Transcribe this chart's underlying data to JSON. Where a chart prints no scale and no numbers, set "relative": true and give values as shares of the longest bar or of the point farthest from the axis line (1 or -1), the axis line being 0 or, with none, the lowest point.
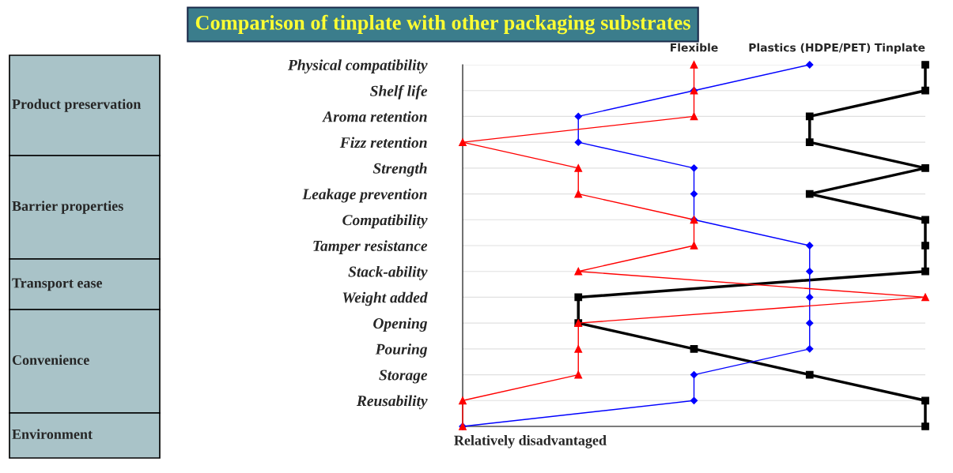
{
  "chart_data": {
    "type": "line",
    "orientation": "horizontal",
    "relative": true,
    "title": "Comparison of tinplate with other packaging substrates",
    "categories": [
      "Physical compatibility",
      "Shelf life",
      "Aroma retention",
      "Fizz retention",
      "Strength",
      "Leakage prevention",
      "Compatibility",
      "Tamper resistance",
      "Stack-ability",
      "Weight added",
      "Opening",
      "Pouring",
      "Storage",
      "Reusability",
      null
    ],
    "series": [
      {
        "name": "Flexible",
        "color": "#ff0000",
        "marker": "triangle",
        "values": [
          0.5,
          0.5,
          0.5,
          0,
          0.25,
          0.25,
          0.5,
          0.5,
          0.25,
          1,
          0.25,
          0.25,
          0.25,
          0,
          0
        ]
      },
      {
        "name": "Plastics (HDPE/PET)",
        "color": "#0000ff",
        "marker": "diamond",
        "values": [
          0.75,
          0.5,
          0.25,
          0.25,
          0.5,
          0.5,
          0.5,
          0.75,
          0.75,
          0.75,
          0.75,
          0.75,
          0.5,
          0.5,
          0
        ]
      },
      {
        "name": "Tinplate",
        "color": "#000000",
        "marker": "square",
        "values": [
          1,
          1,
          0.75,
          0.75,
          1,
          0.75,
          1,
          1,
          1,
          0.25,
          0.25,
          0.5,
          0.75,
          1,
          1
        ]
      }
    ],
    "grid": "y",
    "legend": false,
    "annotations": [
      "Product preservation",
      "Barrier properties",
      "Transport ease",
      "Convenience",
      "Environment",
      "Relatively disadvantaged"
    ]
  }
}
